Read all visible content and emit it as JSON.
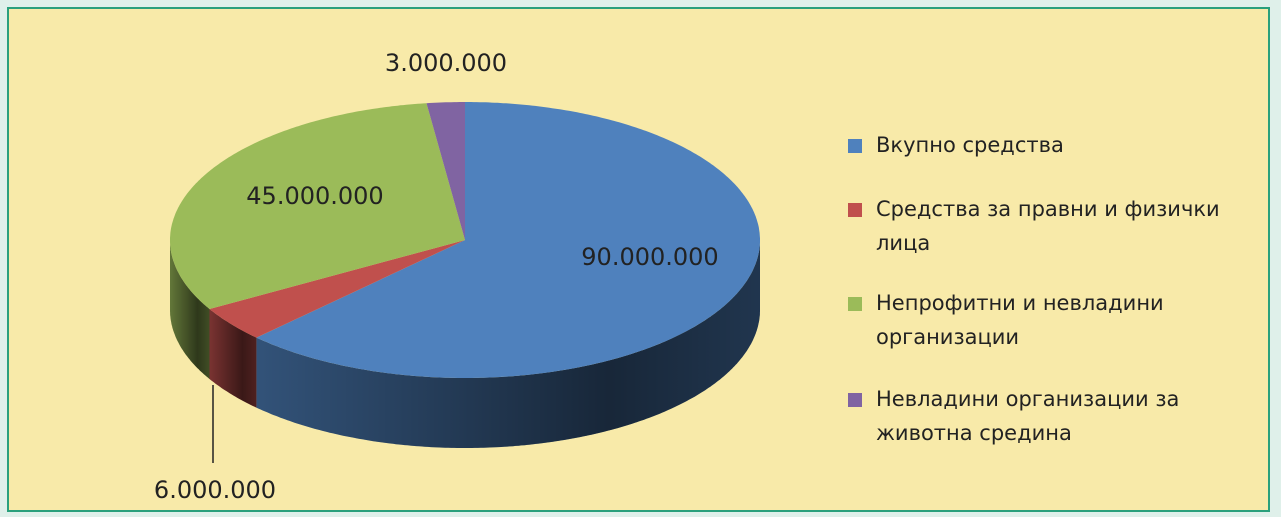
{
  "chart_data": {
    "type": "pie",
    "categories": [
      "Вкупно средства",
      "Средства за правни и физички лица",
      "Непрофитни и невладини организации",
      "Невладини организации за животна средина"
    ],
    "values": [
      90000000,
      6000000,
      45000000,
      3000000
    ],
    "value_labels": [
      "90.000.000",
      "6.000.000",
      "45.000.000",
      "3.000.000"
    ],
    "colors": [
      "#4f81bd",
      "#c0504d",
      "#9bbb59",
      "#8064a2"
    ],
    "legend": "right"
  }
}
